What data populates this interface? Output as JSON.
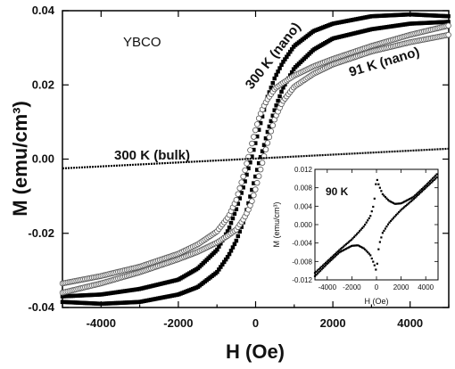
{
  "chart_data": [
    {
      "type": "line",
      "xlabel": "H (Oe)",
      "ylabel": "M (emu/cm³)",
      "xlim": [
        -5000,
        5000
      ],
      "ylim": [
        -0.04,
        0.04
      ],
      "xticks": [
        "-4000",
        "-2000",
        "0",
        "2000",
        "4000"
      ],
      "yticks": [
        "-0.04",
        "-0.02",
        "0.00",
        "0.02",
        "0.04"
      ],
      "annotations": [
        "YBCO",
        "300 K (nano)",
        "91 K (nano)",
        "300 K (bulk)"
      ],
      "series": [
        {
          "name": "300 K (nano)",
          "marker": "filled-square",
          "color": "#000000",
          "upper_branch": {
            "x": [
              -5000,
              -4000,
              -3000,
              -2000,
              -1500,
              -1000,
              -700,
              -500,
              -300,
              -200,
              -100,
              0,
              100,
              200,
              300,
              500,
              700,
              1000,
              1500,
              2000,
              3000,
              4000,
              5000
            ],
            "y": [
              -0.037,
              -0.0365,
              -0.035,
              -0.0325,
              -0.0295,
              -0.0245,
              -0.019,
              -0.0135,
              -0.007,
              -0.003,
              0.0005,
              0.0045,
              0.0085,
              0.0125,
              0.0165,
              0.022,
              0.026,
              0.0305,
              0.0345,
              0.0365,
              0.0385,
              0.039,
              0.0385
            ]
          },
          "lower_branch": {
            "x": [
              -5000,
              -4000,
              -3000,
              -2000,
              -1500,
              -1000,
              -700,
              -500,
              -300,
              -200,
              -100,
              0,
              100,
              200,
              300,
              500,
              700,
              1000,
              1500,
              2000,
              3000,
              4000,
              5000
            ],
            "y": [
              -0.0385,
              -0.039,
              -0.0385,
              -0.0365,
              -0.0345,
              -0.0305,
              -0.026,
              -0.022,
              -0.0165,
              -0.0125,
              -0.0085,
              -0.0045,
              -0.0005,
              0.003,
              0.007,
              0.0135,
              0.019,
              0.0245,
              0.0295,
              0.0325,
              0.035,
              0.0365,
              0.037
            ]
          }
        },
        {
          "name": "91 K (nano)",
          "marker": "open-circle",
          "color": "#555555",
          "upper_branch": {
            "x": [
              -5000,
              -4000,
              -3000,
              -2000,
              -1500,
              -1000,
              -700,
              -500,
              -300,
              -200,
              -100,
              0,
              100,
              200,
              300,
              500,
              700,
              1000,
              1500,
              2000,
              3000,
              4000,
              5000
            ],
            "y": [
              -0.0335,
              -0.0315,
              -0.029,
              -0.0255,
              -0.023,
              -0.0195,
              -0.0155,
              -0.011,
              -0.004,
              0.0,
              0.004,
              0.008,
              0.0115,
              0.014,
              0.016,
              0.019,
              0.0205,
              0.0225,
              0.025,
              0.027,
              0.0305,
              0.0335,
              0.036
            ]
          },
          "lower_branch": {
            "x": [
              -5000,
              -4000,
              -3000,
              -2000,
              -1500,
              -1000,
              -700,
              -500,
              -300,
              -200,
              -100,
              0,
              100,
              200,
              300,
              500,
              700,
              1000,
              1500,
              2000,
              3000,
              4000,
              5000
            ],
            "y": [
              -0.036,
              -0.0335,
              -0.0305,
              -0.027,
              -0.025,
              -0.0225,
              -0.0205,
              -0.019,
              -0.016,
              -0.014,
              -0.0115,
              -0.008,
              -0.004,
              0.0,
              0.004,
              0.011,
              0.0155,
              0.0195,
              0.023,
              0.0255,
              0.029,
              0.0315,
              0.0335
            ]
          }
        },
        {
          "name": "300 K (bulk)",
          "marker": "line",
          "color": "#000000",
          "x": [
            -5000,
            5000
          ],
          "y": [
            -0.0025,
            0.0028
          ]
        }
      ]
    },
    {
      "type": "line",
      "inset": true,
      "xlabel": "H (Oe)",
      "ylabel": "M (emu/cm³)",
      "xlim": [
        -5000,
        5000
      ],
      "ylim": [
        -0.012,
        0.012
      ],
      "xticks": [
        "-4000",
        "-2000",
        "0",
        "2000",
        "4000"
      ],
      "yticks": [
        "-0.012",
        "-0.008",
        "-0.004",
        "0.000",
        "0.004",
        "0.008",
        "0.012"
      ],
      "annotations": [
        "90 K"
      ],
      "series": [
        {
          "name": "90 K",
          "marker": "filled-square",
          "color": "#000000",
          "upper_branch": {
            "x": [
              -5000,
              -4000,
              -3000,
              -2000,
              -1500,
              -1000,
              -500,
              -200,
              0,
              200,
              500,
              1000,
              1500,
              2000,
              3000,
              4000,
              5000
            ],
            "y": [
              -0.0105,
              -0.008,
              -0.0055,
              -0.0032,
              -0.0018,
              -0.0003,
              0.0018,
              0.0045,
              0.0102,
              0.0085,
              0.0066,
              0.0052,
              0.0045,
              0.0046,
              0.006,
              0.0085,
              0.0112
            ]
          },
          "lower_branch": {
            "x": [
              -5000,
              -4000,
              -3000,
              -2000,
              -1500,
              -1000,
              -500,
              -200,
              0,
              200,
              500,
              1000,
              1500,
              2000,
              3000,
              4000,
              5000
            ],
            "y": [
              -0.0112,
              -0.0085,
              -0.006,
              -0.0046,
              -0.0045,
              -0.0052,
              -0.0066,
              -0.0085,
              -0.0102,
              -0.0045,
              -0.0018,
              0.0003,
              0.0018,
              0.0032,
              0.0055,
              0.008,
              0.0105
            ]
          }
        }
      ]
    }
  ]
}
